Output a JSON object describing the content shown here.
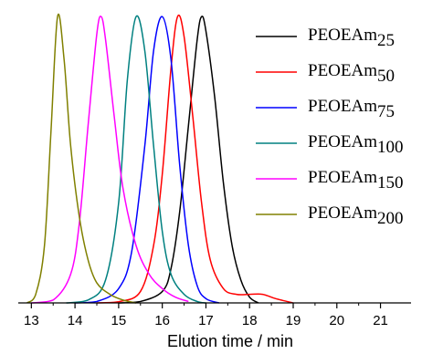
{
  "chart_data": {
    "type": "line",
    "title": "",
    "xlabel": "Elution time / min",
    "ylabel": "",
    "xlim": [
      12.7,
      21.7
    ],
    "ylim": [
      0,
      1.02
    ],
    "xticks": [
      13,
      14,
      15,
      16,
      17,
      18,
      19,
      20,
      21
    ],
    "grid": false,
    "legend_position": "top-right",
    "series": [
      {
        "name": "PEOEAm",
        "subscript": "25",
        "color": "#000000",
        "x": [
          15.0,
          15.5,
          16.0,
          16.2,
          16.4,
          16.6,
          16.8,
          16.9,
          17.0,
          17.2,
          17.4,
          17.6,
          17.8,
          18.0,
          18.2
        ],
        "y": [
          0.0,
          0.005,
          0.04,
          0.12,
          0.32,
          0.62,
          0.92,
          1.0,
          0.95,
          0.72,
          0.42,
          0.2,
          0.08,
          0.02,
          0.0
        ]
      },
      {
        "name": "PEOEAm",
        "subscript": "50",
        "color": "#ff0000",
        "x": [
          14.5,
          15.0,
          15.5,
          15.8,
          16.0,
          16.2,
          16.35,
          16.5,
          16.7,
          16.9,
          17.1,
          17.4,
          17.7,
          18.0,
          18.3,
          18.6,
          19.0
        ],
        "y": [
          0.0,
          0.004,
          0.04,
          0.2,
          0.45,
          0.82,
          1.0,
          0.93,
          0.65,
          0.35,
          0.15,
          0.05,
          0.03,
          0.03,
          0.03,
          0.015,
          0.0
        ]
      },
      {
        "name": "PEOEAm",
        "subscript": "75",
        "color": "#0000ff",
        "x": [
          14.0,
          14.5,
          15.0,
          15.3,
          15.6,
          15.8,
          16.0,
          16.2,
          16.4,
          16.6,
          16.8,
          17.0,
          17.3
        ],
        "y": [
          0.0,
          0.005,
          0.05,
          0.18,
          0.55,
          0.88,
          1.0,
          0.85,
          0.48,
          0.2,
          0.06,
          0.015,
          0.0
        ]
      },
      {
        "name": "PEOEAm",
        "subscript": "100",
        "color": "#008080",
        "x": [
          13.8,
          14.3,
          14.7,
          15.0,
          15.2,
          15.4,
          15.6,
          15.8,
          16.0,
          16.2,
          16.5,
          16.8,
          17.0
        ],
        "y": [
          0.0,
          0.01,
          0.08,
          0.35,
          0.78,
          1.0,
          0.88,
          0.55,
          0.25,
          0.1,
          0.03,
          0.005,
          0.0
        ]
      },
      {
        "name": "PEOEAm",
        "subscript": "150",
        "color": "#ff00ff",
        "x": [
          13.0,
          13.5,
          13.9,
          14.1,
          14.3,
          14.5,
          14.6,
          14.7,
          14.9,
          15.1,
          15.4,
          15.7,
          16.0,
          16.3,
          16.6
        ],
        "y": [
          0.0,
          0.01,
          0.1,
          0.28,
          0.62,
          0.94,
          1.0,
          0.92,
          0.65,
          0.4,
          0.2,
          0.1,
          0.05,
          0.02,
          0.005
        ]
      },
      {
        "name": "PEOEAm",
        "subscript": "200",
        "color": "#808000",
        "x": [
          12.9,
          13.1,
          13.3,
          13.45,
          13.6,
          13.75,
          13.9,
          14.1,
          14.3,
          14.5,
          14.8,
          15.1,
          15.4
        ],
        "y": [
          0.0,
          0.03,
          0.2,
          0.6,
          1.0,
          0.85,
          0.55,
          0.3,
          0.15,
          0.07,
          0.03,
          0.01,
          0.0
        ]
      }
    ]
  }
}
